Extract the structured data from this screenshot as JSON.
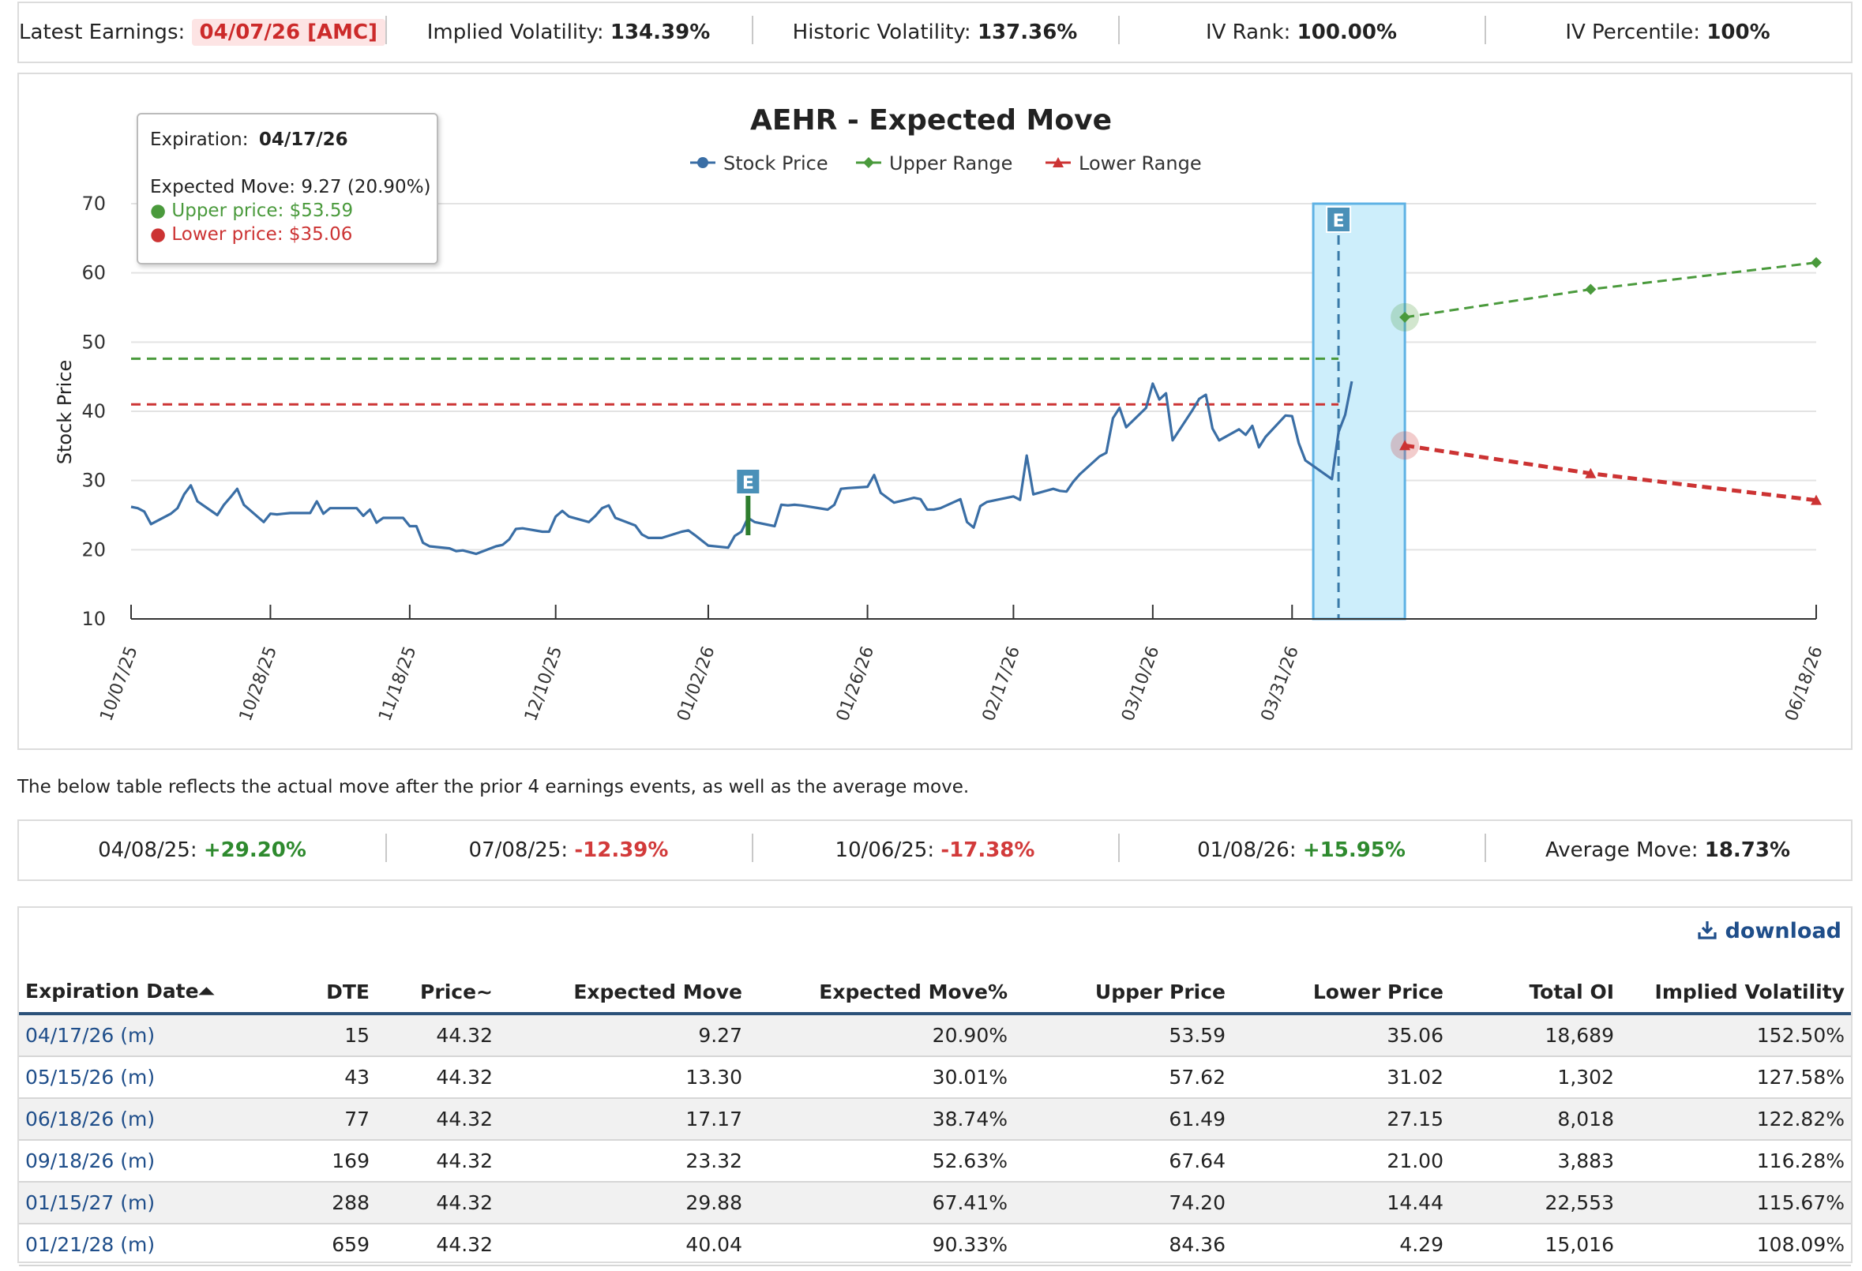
{
  "summary": {
    "earnings_label": "Latest Earnings:",
    "earnings_value": "04/07/26 [AMC]",
    "iv_label": "Implied Volatility:",
    "iv_value": "134.39%",
    "hv_label": "Historic Volatility:",
    "hv_value": "137.36%",
    "ivrank_label": "IV Rank:",
    "ivrank_value": "100.00%",
    "ivpct_label": "IV Percentile:",
    "ivpct_value": "100%"
  },
  "tooltip": {
    "exp_label": "Expiration:",
    "exp_value": "04/17/26",
    "move_text": "Expected Move: 9.27 (20.90%)",
    "upper_text": "● Upper price: $53.59",
    "lower_text": "● Lower price: $35.06"
  },
  "earnings_marker": "E",
  "colors": {
    "stock": "#3a6ea5",
    "upper": "#4a9a3c",
    "lower": "#cc3333",
    "highlight_fill": "#cdeefb",
    "highlight_stroke": "#5fb2e4",
    "earnings_badge": "#4a90b8"
  },
  "chart_data": {
    "type": "line",
    "title": "AEHR - Expected Move",
    "ylabel": "Stock Price",
    "xlabel": "",
    "ylim": [
      10,
      70
    ],
    "yticks": [
      "10",
      "20",
      "30",
      "40",
      "50",
      "60",
      "70"
    ],
    "xtick_labels": [
      "10/07/25",
      "10/28/25",
      "11/18/25",
      "12/10/25",
      "01/02/26",
      "01/26/26",
      "02/17/26",
      "03/10/26",
      "03/31/26",
      "06/18/26"
    ],
    "legend": [
      "Stock Price",
      "Upper Range",
      "Lower Range"
    ],
    "legend_position": "top-center",
    "grid": true,
    "series": [
      {
        "name": "Stock Price",
        "points": [
          [
            "10/07/25",
            26.2
          ],
          [
            "10/08/25",
            26.0
          ],
          [
            "10/09/25",
            25.5
          ],
          [
            "10/10/25",
            23.7
          ],
          [
            "10/13/25",
            25.2
          ],
          [
            "10/14/25",
            26.0
          ],
          [
            "10/15/25",
            28.0
          ],
          [
            "10/16/25",
            29.3
          ],
          [
            "10/17/25",
            27.0
          ],
          [
            "10/20/25",
            25.0
          ],
          [
            "10/21/25",
            26.5
          ],
          [
            "10/22/25",
            27.6
          ],
          [
            "10/23/25",
            28.8
          ],
          [
            "10/24/25",
            26.5
          ],
          [
            "10/27/25",
            24.0
          ],
          [
            "10/28/25",
            25.2
          ],
          [
            "10/29/25",
            25.1
          ],
          [
            "10/30/25",
            25.2
          ],
          [
            "10/31/25",
            25.3
          ],
          [
            "11/03/25",
            25.3
          ],
          [
            "11/04/25",
            27.0
          ],
          [
            "11/05/25",
            25.2
          ],
          [
            "11/06/25",
            26.0
          ],
          [
            "11/07/25",
            26.0
          ],
          [
            "11/10/25",
            26.0
          ],
          [
            "11/11/25",
            24.9
          ],
          [
            "11/12/25",
            25.8
          ],
          [
            "11/13/25",
            23.9
          ],
          [
            "11/14/25",
            24.6
          ],
          [
            "11/17/25",
            24.6
          ],
          [
            "11/18/25",
            23.4
          ],
          [
            "11/19/25",
            23.4
          ],
          [
            "11/20/25",
            21.0
          ],
          [
            "11/21/25",
            20.5
          ],
          [
            "11/24/25",
            20.2
          ],
          [
            "11/25/25",
            19.8
          ],
          [
            "11/26/25",
            19.9
          ],
          [
            "11/28/25",
            19.4
          ],
          [
            "12/01/25",
            20.5
          ],
          [
            "12/02/25",
            20.7
          ],
          [
            "12/03/25",
            21.5
          ],
          [
            "12/04/25",
            23.0
          ],
          [
            "12/05/25",
            23.1
          ],
          [
            "12/08/25",
            22.6
          ],
          [
            "12/09/25",
            22.6
          ],
          [
            "12/10/25",
            24.8
          ],
          [
            "12/11/25",
            25.6
          ],
          [
            "12/12/25",
            24.8
          ],
          [
            "12/15/25",
            24.0
          ],
          [
            "12/16/25",
            24.9
          ],
          [
            "12/17/25",
            26.0
          ],
          [
            "12/18/25",
            26.4
          ],
          [
            "12/19/25",
            24.6
          ],
          [
            "12/22/25",
            23.5
          ],
          [
            "12/23/25",
            22.2
          ],
          [
            "12/24/25",
            21.7
          ],
          [
            "12/26/25",
            21.7
          ],
          [
            "12/29/25",
            22.6
          ],
          [
            "12/30/25",
            22.8
          ],
          [
            "12/31/25",
            22.1
          ],
          [
            "01/02/26",
            20.6
          ],
          [
            "01/05/26",
            20.3
          ],
          [
            "01/06/26",
            22.0
          ],
          [
            "01/07/26",
            22.6
          ],
          [
            "01/08/26",
            24.6
          ],
          [
            "01/09/26",
            24.0
          ],
          [
            "01/12/26",
            23.4
          ],
          [
            "01/13/26",
            26.5
          ],
          [
            "01/14/26",
            26.4
          ],
          [
            "01/15/26",
            26.5
          ],
          [
            "01/16/26",
            26.4
          ],
          [
            "01/20/26",
            25.8
          ],
          [
            "01/21/26",
            26.5
          ],
          [
            "01/22/26",
            28.8
          ],
          [
            "01/23/26",
            28.9
          ],
          [
            "01/26/26",
            29.1
          ],
          [
            "01/27/26",
            30.8
          ],
          [
            "01/28/26",
            28.2
          ],
          [
            "01/29/26",
            27.5
          ],
          [
            "01/30/26",
            26.8
          ],
          [
            "02/02/26",
            27.5
          ],
          [
            "02/03/26",
            27.3
          ],
          [
            "02/04/26",
            25.8
          ],
          [
            "02/05/26",
            25.8
          ],
          [
            "02/06/26",
            26.0
          ],
          [
            "02/09/26",
            27.3
          ],
          [
            "02/10/26",
            24.0
          ],
          [
            "02/11/26",
            23.2
          ],
          [
            "02/12/26",
            26.3
          ],
          [
            "02/13/26",
            26.9
          ],
          [
            "02/17/26",
            27.7
          ],
          [
            "02/18/26",
            27.2
          ],
          [
            "02/19/26",
            33.6
          ],
          [
            "02/20/26",
            28.0
          ],
          [
            "02/23/26",
            28.8
          ],
          [
            "02/24/26",
            28.5
          ],
          [
            "02/25/26",
            28.4
          ],
          [
            "02/26/26",
            29.8
          ],
          [
            "02/27/26",
            30.9
          ],
          [
            "03/02/26",
            33.5
          ],
          [
            "03/03/26",
            34.0
          ],
          [
            "03/04/26",
            39.0
          ],
          [
            "03/05/26",
            40.5
          ],
          [
            "03/06/26",
            37.7
          ],
          [
            "03/09/26",
            40.5
          ],
          [
            "03/10/26",
            44.0
          ],
          [
            "03/11/26",
            41.7
          ],
          [
            "03/12/26",
            42.6
          ],
          [
            "03/13/26",
            35.8
          ],
          [
            "03/16/26",
            40.2
          ],
          [
            "03/17/26",
            41.8
          ],
          [
            "03/18/26",
            42.4
          ],
          [
            "03/19/26",
            37.5
          ],
          [
            "03/20/26",
            35.8
          ],
          [
            "03/23/26",
            37.4
          ],
          [
            "03/24/26",
            36.6
          ],
          [
            "03/25/26",
            37.9
          ],
          [
            "03/26/26",
            34.8
          ],
          [
            "03/27/26",
            36.3
          ],
          [
            "03/30/26",
            39.4
          ],
          [
            "03/31/26",
            39.3
          ],
          [
            "04/01/26",
            35.4
          ],
          [
            "04/02/26",
            32.9
          ],
          [
            "04/06/26",
            30.2
          ],
          [
            "04/07/26",
            37.0
          ],
          [
            "04/08/26",
            39.5
          ],
          [
            "04/09/26",
            44.32
          ]
        ]
      },
      {
        "name": "Upper Range",
        "points": [
          [
            "04/17/26",
            53.59
          ],
          [
            "05/15/26",
            57.62
          ],
          [
            "06/18/26",
            61.49
          ]
        ]
      },
      {
        "name": "Lower Range",
        "points": [
          [
            "04/17/26",
            35.06
          ],
          [
            "05/15/26",
            31.02
          ],
          [
            "06/18/26",
            27.15
          ]
        ]
      }
    ],
    "reference_lines": [
      {
        "level": 47.6,
        "to": "04/07/26"
      },
      {
        "level": 41.0,
        "to": "04/07/26"
      }
    ],
    "earnings_events": [
      "01/08/26",
      "04/07/26"
    ],
    "highlight_range": [
      "04/07/26",
      "04/17/26"
    ]
  },
  "history": {
    "note": "The below table reflects the actual move after the prior 4 earnings events, as well as the average move.",
    "items": [
      {
        "date": "04/08/25:",
        "move": "+29.20%",
        "dir": "pos"
      },
      {
        "date": "07/08/25:",
        "move": "-12.39%",
        "dir": "neg"
      },
      {
        "date": "10/06/25:",
        "move": "-17.38%",
        "dir": "neg"
      },
      {
        "date": "01/08/26:",
        "move": "+15.95%",
        "dir": "pos"
      }
    ],
    "avg_label": "Average Move:",
    "avg_value": "18.73%"
  },
  "table": {
    "download_label": "download",
    "headers": [
      "Expiration Date⏶",
      "DTE",
      "Price~",
      "Expected Move",
      "Expected Move%",
      "Upper Price",
      "Lower Price",
      "Total OI",
      "Implied Volatility"
    ],
    "rows": [
      [
        "04/17/26 (m)",
        "15",
        "44.32",
        "9.27",
        "20.90%",
        "53.59",
        "35.06",
        "18,689",
        "152.50%"
      ],
      [
        "05/15/26 (m)",
        "43",
        "44.32",
        "13.30",
        "30.01%",
        "57.62",
        "31.02",
        "1,302",
        "127.58%"
      ],
      [
        "06/18/26 (m)",
        "77",
        "44.32",
        "17.17",
        "38.74%",
        "61.49",
        "27.15",
        "8,018",
        "122.82%"
      ],
      [
        "09/18/26 (m)",
        "169",
        "44.32",
        "23.32",
        "52.63%",
        "67.64",
        "21.00",
        "3,883",
        "116.28%"
      ],
      [
        "01/15/27 (m)",
        "288",
        "44.32",
        "29.88",
        "67.41%",
        "74.20",
        "14.44",
        "22,553",
        "115.67%"
      ],
      [
        "01/21/28 (m)",
        "659",
        "44.32",
        "40.04",
        "90.33%",
        "84.36",
        "4.29",
        "15,016",
        "108.09%"
      ]
    ]
  }
}
